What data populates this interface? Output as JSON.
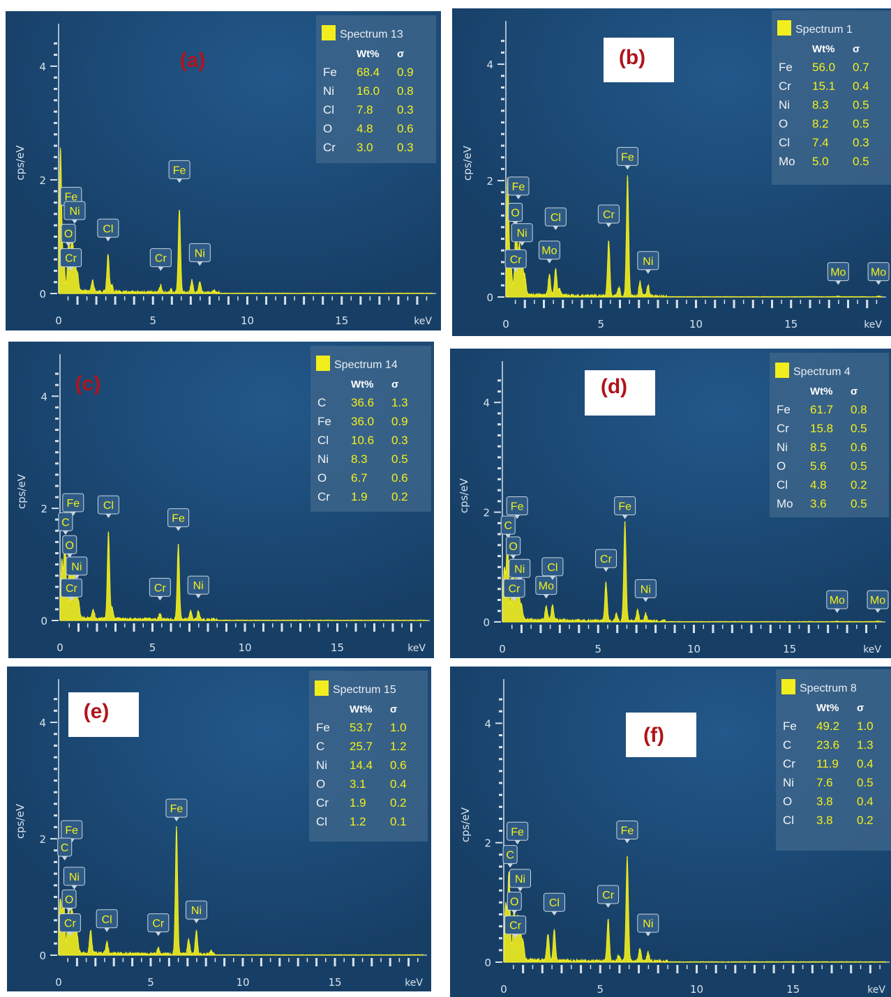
{
  "colors": {
    "background": "#173f66",
    "background_glow": "#22588a",
    "spectrum": "#f2ee1e",
    "axis": "#d8e2ec",
    "label_box": "#2e5a85",
    "label_text": "#f4f01a",
    "legend_bg": "#3c6489",
    "panel_letter": "#b0141c",
    "panel_letter_box": "#ffffff"
  },
  "shared": {
    "ylabel": "cps/eV",
    "xunit": "keV",
    "wt_header": "Wt%",
    "sigma_header": "σ"
  },
  "panels": [
    {
      "letter": "(a)",
      "spectrum_name": "Spectrum 13",
      "rows": [
        {
          "el": "Fe",
          "wt": "68.4",
          "sig": "0.9"
        },
        {
          "el": "Ni",
          "wt": "16.0",
          "sig": "0.8"
        },
        {
          "el": "Cl",
          "wt": "7.8",
          "sig": "0.3"
        },
        {
          "el": "O",
          "wt": "4.8",
          "sig": "0.6"
        },
        {
          "el": "Cr",
          "wt": "3.0",
          "sig": "0.3"
        }
      ],
      "peak_labels": [
        "Fe",
        "Ni",
        "O",
        "Cr",
        "Cl",
        "Cr",
        "Fe",
        "Ni"
      ]
    },
    {
      "letter": "(b)",
      "spectrum_name": "Spectrum 1",
      "rows": [
        {
          "el": "Fe",
          "wt": "56.0",
          "sig": "0.7"
        },
        {
          "el": "Cr",
          "wt": "15.1",
          "sig": "0.4"
        },
        {
          "el": "Ni",
          "wt": "8.3",
          "sig": "0.5"
        },
        {
          "el": "O",
          "wt": "8.2",
          "sig": "0.5"
        },
        {
          "el": "Cl",
          "wt": "7.4",
          "sig": "0.3"
        },
        {
          "el": "Mo",
          "wt": "5.0",
          "sig": "0.5"
        }
      ],
      "peak_labels": [
        "Fe",
        "O",
        "Ni",
        "Cr",
        "Mo",
        "Cl",
        "Cr",
        "Fe",
        "Ni",
        "Mo",
        "Mo"
      ]
    },
    {
      "letter": "(c)",
      "spectrum_name": "Spectrum 14",
      "rows": [
        {
          "el": "C",
          "wt": "36.6",
          "sig": "1.3"
        },
        {
          "el": "Fe",
          "wt": "36.0",
          "sig": "0.9"
        },
        {
          "el": "Cl",
          "wt": "10.6",
          "sig": "0.3"
        },
        {
          "el": "Ni",
          "wt": "8.3",
          "sig": "0.5"
        },
        {
          "el": "O",
          "wt": "6.7",
          "sig": "0.6"
        },
        {
          "el": "Cr",
          "wt": "1.9",
          "sig": "0.2"
        }
      ],
      "peak_labels": [
        "Fe",
        "C",
        "O",
        "Ni",
        "Cr",
        "Cl",
        "Cr",
        "Fe",
        "Ni"
      ]
    },
    {
      "letter": "(d)",
      "spectrum_name": "Spectrum 4",
      "rows": [
        {
          "el": "Fe",
          "wt": "61.7",
          "sig": "0.8"
        },
        {
          "el": "Cr",
          "wt": "15.8",
          "sig": "0.5"
        },
        {
          "el": "Ni",
          "wt": "8.5",
          "sig": "0.6"
        },
        {
          "el": "O",
          "wt": "5.6",
          "sig": "0.5"
        },
        {
          "el": "Cl",
          "wt": "4.8",
          "sig": "0.2"
        },
        {
          "el": "Mo",
          "wt": "3.6",
          "sig": "0.5"
        }
      ],
      "peak_labels": [
        "Fe",
        "C",
        "O",
        "Ni",
        "Cr",
        "Mo",
        "Cl",
        "Cr",
        "Fe",
        "Ni",
        "Mo",
        "Mo"
      ]
    },
    {
      "letter": "(e)",
      "spectrum_name": "Spectrum 15",
      "rows": [
        {
          "el": "Fe",
          "wt": "53.7",
          "sig": "1.0"
        },
        {
          "el": "C",
          "wt": "25.7",
          "sig": "1.2"
        },
        {
          "el": "Ni",
          "wt": "14.4",
          "sig": "0.6"
        },
        {
          "el": "O",
          "wt": "3.1",
          "sig": "0.4"
        },
        {
          "el": "Cr",
          "wt": "1.9",
          "sig": "0.2"
        },
        {
          "el": "Cl",
          "wt": "1.2",
          "sig": "0.1"
        }
      ],
      "peak_labels": [
        "Fe",
        "C",
        "Ni",
        "O",
        "Cr",
        "Cl",
        "Cr",
        "Fe",
        "Ni"
      ]
    },
    {
      "letter": "(f)",
      "spectrum_name": "Spectrum 8",
      "rows": [
        {
          "el": "Fe",
          "wt": "49.2",
          "sig": "1.0"
        },
        {
          "el": "C",
          "wt": "23.6",
          "sig": "1.3"
        },
        {
          "el": "Cr",
          "wt": "11.9",
          "sig": "0.4"
        },
        {
          "el": "Ni",
          "wt": "7.6",
          "sig": "0.5"
        },
        {
          "el": "O",
          "wt": "3.8",
          "sig": "0.4"
        },
        {
          "el": "Cl",
          "wt": "3.8",
          "sig": "0.2"
        }
      ],
      "peak_labels": [
        "Fe",
        "C",
        "Ni",
        "O",
        "Cr",
        "Cl",
        "Cr",
        "Fe",
        "Ni"
      ]
    }
  ],
  "chart_data": [
    {
      "type": "line",
      "panel": "(a)",
      "ylabel": "cps/eV",
      "xlabel": "keV",
      "xlim": [
        0,
        20
      ],
      "ylim": [
        0,
        4.6
      ],
      "xticks": [
        "0",
        "5",
        "10",
        "15"
      ],
      "yticks": [
        "0",
        "2",
        "4"
      ],
      "peaks": [
        {
          "x": 0.1,
          "y": 2.5
        },
        {
          "x": 0.27,
          "y": 0.55
        },
        {
          "x": 0.52,
          "y": 0.6
        },
        {
          "x": 0.57,
          "y": 0.35
        },
        {
          "x": 0.71,
          "y": 0.9
        },
        {
          "x": 0.85,
          "y": 0.55
        },
        {
          "x": 1.0,
          "y": 0.3
        },
        {
          "x": 1.8,
          "y": 0.2
        },
        {
          "x": 2.62,
          "y": 0.65
        },
        {
          "x": 2.82,
          "y": 0.12
        },
        {
          "x": 5.41,
          "y": 0.12
        },
        {
          "x": 5.95,
          "y": 0.05
        },
        {
          "x": 6.4,
          "y": 1.45
        },
        {
          "x": 7.06,
          "y": 0.22
        },
        {
          "x": 7.48,
          "y": 0.2
        },
        {
          "x": 8.26,
          "y": 0.04
        }
      ]
    },
    {
      "type": "line",
      "panel": "(b)",
      "ylabel": "cps/eV",
      "xlabel": "keV",
      "xlim": [
        0,
        20
      ],
      "ylim": [
        0,
        4.6
      ],
      "xticks": [
        "0",
        "5",
        "10",
        "15"
      ],
      "yticks": [
        "0",
        "2",
        "4"
      ],
      "peaks": [
        {
          "x": 0.1,
          "y": 2.0
        },
        {
          "x": 0.27,
          "y": 0.5
        },
        {
          "x": 0.52,
          "y": 0.9
        },
        {
          "x": 0.57,
          "y": 0.4
        },
        {
          "x": 0.71,
          "y": 0.8
        },
        {
          "x": 0.85,
          "y": 0.55
        },
        {
          "x": 1.0,
          "y": 0.3
        },
        {
          "x": 2.29,
          "y": 0.35
        },
        {
          "x": 2.62,
          "y": 0.45
        },
        {
          "x": 2.82,
          "y": 0.12
        },
        {
          "x": 5.41,
          "y": 0.95
        },
        {
          "x": 5.95,
          "y": 0.15
        },
        {
          "x": 6.4,
          "y": 2.05
        },
        {
          "x": 7.06,
          "y": 0.25
        },
        {
          "x": 7.48,
          "y": 0.18
        },
        {
          "x": 17.48,
          "y": 0.01
        },
        {
          "x": 19.6,
          "y": 0.01
        }
      ]
    },
    {
      "type": "line",
      "panel": "(c)",
      "ylabel": "cps/eV",
      "xlabel": "keV",
      "xlim": [
        0,
        20
      ],
      "ylim": [
        0,
        4.6
      ],
      "xticks": [
        "0",
        "5",
        "10",
        "15"
      ],
      "yticks": [
        "0",
        "2",
        "4"
      ],
      "peaks": [
        {
          "x": 0.1,
          "y": 1.0
        },
        {
          "x": 0.27,
          "y": 1.4
        },
        {
          "x": 0.52,
          "y": 0.9
        },
        {
          "x": 0.57,
          "y": 0.35
        },
        {
          "x": 0.71,
          "y": 1.0
        },
        {
          "x": 0.85,
          "y": 0.55
        },
        {
          "x": 1.0,
          "y": 0.3
        },
        {
          "x": 1.8,
          "y": 0.15
        },
        {
          "x": 2.62,
          "y": 1.55
        },
        {
          "x": 2.82,
          "y": 0.2
        },
        {
          "x": 5.41,
          "y": 0.1
        },
        {
          "x": 6.4,
          "y": 1.35
        },
        {
          "x": 7.06,
          "y": 0.15
        },
        {
          "x": 7.48,
          "y": 0.15
        }
      ]
    },
    {
      "type": "line",
      "panel": "(d)",
      "ylabel": "cps/eV",
      "xlabel": "keV",
      "xlim": [
        0,
        20
      ],
      "ylim": [
        0,
        4.6
      ],
      "xticks": [
        "0",
        "5",
        "10",
        "15"
      ],
      "yticks": [
        "0",
        "2",
        "4"
      ],
      "peaks": [
        {
          "x": 0.1,
          "y": 0.9
        },
        {
          "x": 0.27,
          "y": 1.45
        },
        {
          "x": 0.52,
          "y": 0.8
        },
        {
          "x": 0.57,
          "y": 0.3
        },
        {
          "x": 0.71,
          "y": 0.7
        },
        {
          "x": 0.85,
          "y": 0.45
        },
        {
          "x": 1.0,
          "y": 0.25
        },
        {
          "x": 2.29,
          "y": 0.25
        },
        {
          "x": 2.62,
          "y": 0.28
        },
        {
          "x": 5.41,
          "y": 0.7
        },
        {
          "x": 5.95,
          "y": 0.12
        },
        {
          "x": 6.4,
          "y": 1.8
        },
        {
          "x": 7.06,
          "y": 0.2
        },
        {
          "x": 7.48,
          "y": 0.15
        },
        {
          "x": 17.48,
          "y": 0.01
        },
        {
          "x": 19.6,
          "y": 0.01
        }
      ]
    },
    {
      "type": "line",
      "panel": "(e)",
      "ylabel": "cps/eV",
      "xlabel": "keV",
      "xlim": [
        0,
        20
      ],
      "ylim": [
        0,
        4.6
      ],
      "xticks": [
        "0",
        "5",
        "10",
        "15"
      ],
      "yticks": [
        "0",
        "2",
        "4"
      ],
      "peaks": [
        {
          "x": 0.1,
          "y": 0.9
        },
        {
          "x": 0.27,
          "y": 1.0
        },
        {
          "x": 0.52,
          "y": 0.5
        },
        {
          "x": 0.57,
          "y": 0.3
        },
        {
          "x": 0.71,
          "y": 0.7
        },
        {
          "x": 0.85,
          "y": 0.55
        },
        {
          "x": 1.0,
          "y": 0.3
        },
        {
          "x": 1.74,
          "y": 0.4
        },
        {
          "x": 2.62,
          "y": 0.2
        },
        {
          "x": 5.41,
          "y": 0.1
        },
        {
          "x": 6.4,
          "y": 2.2
        },
        {
          "x": 7.06,
          "y": 0.25
        },
        {
          "x": 7.48,
          "y": 0.4
        },
        {
          "x": 8.26,
          "y": 0.05
        }
      ]
    },
    {
      "type": "line",
      "panel": "(f)",
      "ylabel": "cps/eV",
      "xlabel": "keV",
      "xlim": [
        0,
        20
      ],
      "ylim": [
        0,
        4.6
      ],
      "xticks": [
        "0",
        "5",
        "10",
        "15"
      ],
      "yticks": [
        "0",
        "2",
        "4"
      ],
      "peaks": [
        {
          "x": 0.1,
          "y": 0.9
        },
        {
          "x": 0.27,
          "y": 1.45
        },
        {
          "x": 0.52,
          "y": 0.6
        },
        {
          "x": 0.57,
          "y": 0.3
        },
        {
          "x": 0.71,
          "y": 0.7
        },
        {
          "x": 0.85,
          "y": 0.45
        },
        {
          "x": 1.0,
          "y": 0.3
        },
        {
          "x": 2.29,
          "y": 0.45
        },
        {
          "x": 2.62,
          "y": 0.5
        },
        {
          "x": 5.41,
          "y": 0.7
        },
        {
          "x": 5.95,
          "y": 0.1
        },
        {
          "x": 6.4,
          "y": 1.75
        },
        {
          "x": 7.06,
          "y": 0.2
        },
        {
          "x": 7.48,
          "y": 0.15
        }
      ]
    }
  ]
}
